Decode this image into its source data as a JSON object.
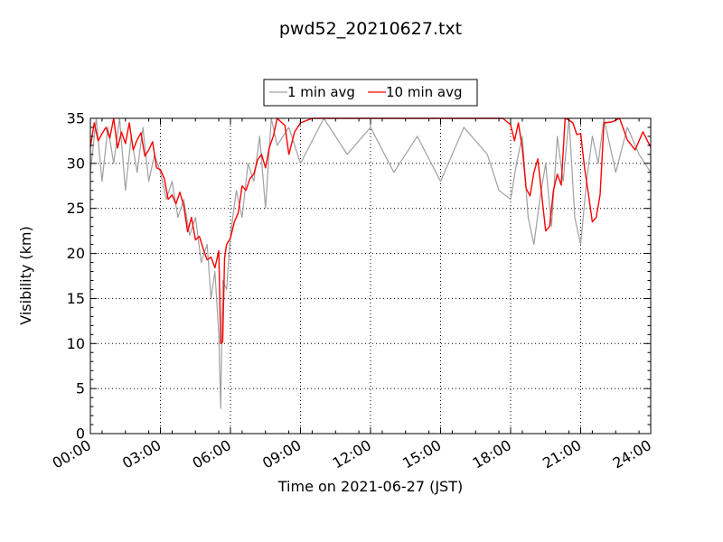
{
  "chart_data": {
    "type": "line",
    "title": "pwd52_20210627.txt",
    "xlabel": "Time on 2021-06-27 (JST)",
    "ylabel": "Visibility (km)",
    "xlim": [
      "00:00",
      "24:00"
    ],
    "ylim": [
      0,
      35
    ],
    "x_ticks": [
      "00:00",
      "03:00",
      "06:00",
      "09:00",
      "12:00",
      "15:00",
      "18:00",
      "21:00",
      "24:00"
    ],
    "y_ticks": [
      "0",
      "5",
      "10",
      "15",
      "20",
      "25",
      "30",
      "35"
    ],
    "grid": true,
    "grid_style": "dotted",
    "legend_position": "top-center",
    "series": [
      {
        "name": "1 min avg",
        "color": "#a0a0a0",
        "x": [
          "00:00",
          "00:15",
          "00:30",
          "00:45",
          "01:00",
          "01:15",
          "01:30",
          "01:45",
          "02:00",
          "02:15",
          "02:30",
          "02:45",
          "03:00",
          "03:15",
          "03:30",
          "03:45",
          "04:00",
          "04:15",
          "04:30",
          "04:45",
          "05:00",
          "05:10",
          "05:20",
          "05:30",
          "05:35",
          "05:40",
          "05:50",
          "06:00",
          "06:15",
          "06:30",
          "06:45",
          "07:00",
          "07:15",
          "07:30",
          "07:45",
          "08:00",
          "08:30",
          "09:00",
          "10:00",
          "11:00",
          "12:00",
          "13:00",
          "14:00",
          "15:00",
          "16:00",
          "17:00",
          "17:30",
          "18:00",
          "18:15",
          "18:30",
          "18:45",
          "19:00",
          "19:15",
          "19:30",
          "19:45",
          "20:00",
          "20:15",
          "20:30",
          "20:45",
          "21:00",
          "21:15",
          "21:30",
          "21:45",
          "22:00",
          "22:30",
          "23:00",
          "23:30",
          "24:00"
        ],
        "y": [
          29,
          35,
          28,
          34,
          30,
          35,
          27,
          33,
          29,
          34,
          28,
          31,
          29,
          26,
          28,
          24,
          26,
          22,
          24,
          19,
          21,
          15,
          18,
          11,
          2.8,
          17,
          16,
          22,
          27,
          24,
          30,
          28,
          33,
          25,
          35,
          32,
          34,
          30,
          35,
          31,
          34,
          29,
          33,
          28,
          34,
          31,
          27,
          26,
          30,
          33,
          24,
          21,
          26,
          30,
          23,
          33,
          28,
          35,
          24,
          21,
          28,
          33,
          30,
          35,
          29,
          34,
          31,
          29
        ]
      },
      {
        "name": "10 min avg",
        "color": "#ff0000",
        "x": [
          "00:00",
          "00:10",
          "00:20",
          "00:30",
          "00:40",
          "00:50",
          "01:00",
          "01:10",
          "01:20",
          "01:30",
          "01:40",
          "01:50",
          "02:00",
          "02:10",
          "02:20",
          "02:30",
          "02:40",
          "02:50",
          "03:00",
          "03:10",
          "03:20",
          "03:30",
          "03:40",
          "03:50",
          "04:00",
          "04:10",
          "04:20",
          "04:30",
          "04:40",
          "04:50",
          "05:00",
          "05:10",
          "05:20",
          "05:30",
          "05:35",
          "05:40",
          "05:45",
          "05:50",
          "06:00",
          "06:10",
          "06:20",
          "06:30",
          "06:40",
          "06:50",
          "07:00",
          "07:10",
          "07:20",
          "07:30",
          "07:40",
          "07:50",
          "08:00",
          "08:10",
          "08:20",
          "08:30",
          "08:45",
          "09:00",
          "09:30",
          "10:00",
          "10:30",
          "11:00",
          "11:30",
          "12:00",
          "12:30",
          "13:00",
          "13:30",
          "14:00",
          "14:30",
          "15:00",
          "15:30",
          "16:00",
          "16:30",
          "17:00",
          "17:20",
          "17:40",
          "18:00",
          "18:10",
          "18:20",
          "18:30",
          "18:40",
          "18:50",
          "19:00",
          "19:10",
          "19:20",
          "19:30",
          "19:40",
          "19:50",
          "20:00",
          "20:10",
          "20:20",
          "20:30",
          "20:40",
          "20:50",
          "21:00",
          "21:10",
          "21:20",
          "21:30",
          "21:40",
          "21:50",
          "22:00",
          "22:20",
          "22:40",
          "23:00",
          "23:20",
          "23:40",
          "24:00"
        ],
        "y": [
          31.8,
          34.5,
          32.5,
          33.3,
          34,
          32.8,
          35,
          31.7,
          33.5,
          32.2,
          34.5,
          31.5,
          32.6,
          33.4,
          30.8,
          31.5,
          32.4,
          29.5,
          29.3,
          28.3,
          26,
          26.5,
          25.5,
          26.8,
          25.3,
          22.4,
          24,
          21.5,
          21.9,
          20.5,
          19.3,
          19.6,
          18.4,
          20.3,
          10,
          10.2,
          19.5,
          21,
          21.7,
          23.5,
          24.5,
          27.5,
          27,
          28.3,
          28.8,
          30.4,
          31,
          29.5,
          31.8,
          33,
          35,
          34.6,
          34.2,
          31,
          33.5,
          34.5,
          35,
          35,
          35,
          35,
          35,
          35,
          35,
          35,
          35,
          35,
          35,
          35,
          35,
          35,
          35,
          35,
          35,
          35,
          34.3,
          32.5,
          34.5,
          31.7,
          27.2,
          26.4,
          29,
          30.5,
          26.5,
          22.5,
          23,
          27,
          28.8,
          27.6,
          35,
          34.8,
          34.5,
          33.2,
          33.3,
          29.5,
          26.6,
          23.5,
          24,
          26.5,
          34.5,
          34.6,
          35,
          32.6,
          31.5,
          33.5,
          31.8
        ]
      }
    ]
  }
}
